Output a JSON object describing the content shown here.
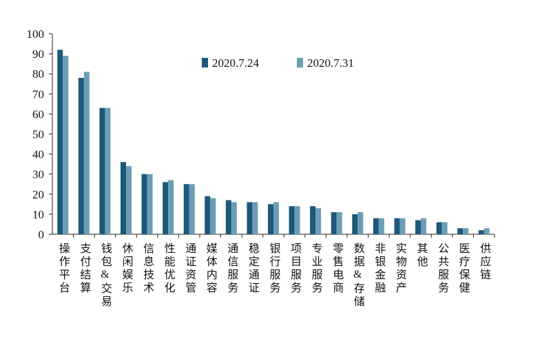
{
  "chart_data": {
    "type": "bar",
    "categories": [
      "操作平台",
      "支付结算",
      "钱包&交易",
      "休闲娱乐",
      "信息技术",
      "性能优化",
      "通证资管",
      "媒体内容",
      "通信服务",
      "稳定通证",
      "银行服务",
      "项目服务",
      "专业服务",
      "零售电商",
      "数据&存储",
      "非银金融",
      "实物资产",
      "其他",
      "公共服务",
      "医疗保健",
      "供应链"
    ],
    "series": [
      {
        "name": "2020.7.24",
        "color": "#1d5878",
        "values": [
          92,
          78,
          63,
          36,
          30,
          26,
          25,
          19,
          17,
          16,
          15,
          14,
          14,
          11,
          10,
          8,
          8,
          7,
          6,
          3,
          2
        ]
      },
      {
        "name": "2020.7.31",
        "color": "#6c9db6",
        "values": [
          89,
          81,
          63,
          34,
          30,
          27,
          25,
          18,
          16,
          16,
          16,
          14,
          13,
          11,
          11,
          8,
          8,
          8,
          6,
          3,
          3
        ]
      }
    ],
    "ylim": [
      0,
      100
    ],
    "yticks": [
      0,
      10,
      20,
      30,
      40,
      50,
      60,
      70,
      80,
      90,
      100
    ]
  }
}
